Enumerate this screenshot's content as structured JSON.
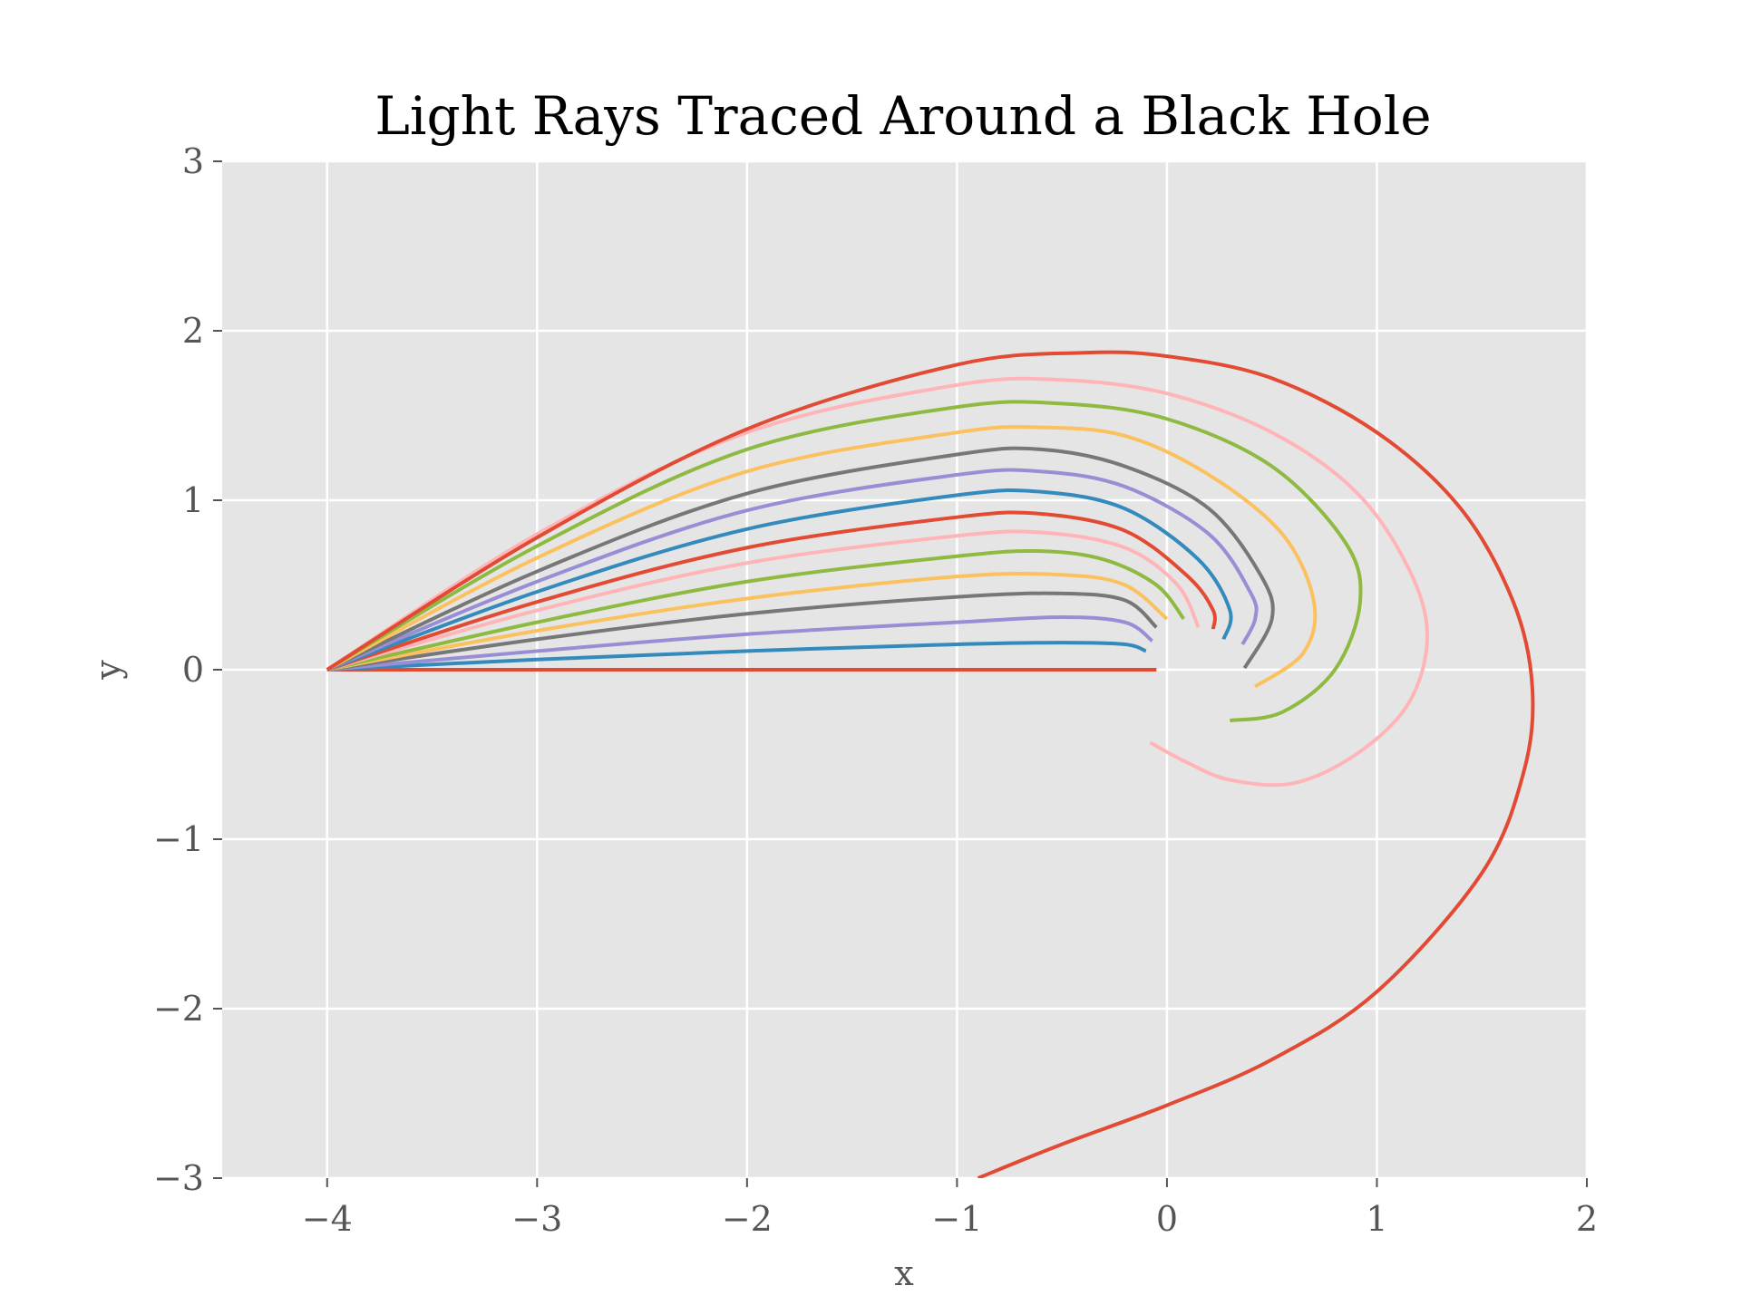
{
  "chart_data": {
    "type": "line",
    "title": "Light Rays Traced Around a Black Hole",
    "xlabel": "x",
    "ylabel": "y",
    "xlim": [
      -4.5,
      2
    ],
    "ylim": [
      -3,
      3
    ],
    "xticks": [
      -4,
      -3,
      -2,
      -1,
      0,
      1,
      2
    ],
    "yticks": [
      -3,
      -2,
      -1,
      0,
      1,
      2,
      3
    ],
    "xtick_labels": [
      "−4",
      "−3",
      "−2",
      "−1",
      "0",
      "1",
      "2"
    ],
    "ytick_labels": [
      "−3",
      "−2",
      "−1",
      "0",
      "1",
      "2",
      "3"
    ],
    "grid": true,
    "legend": "none",
    "background": "#e5e5e5",
    "series": [
      {
        "color": "#e24a33",
        "x": [
          -4,
          -3,
          -2,
          -1,
          -0.5,
          -0.05
        ],
        "y": [
          0,
          0,
          0,
          0,
          0,
          0
        ]
      },
      {
        "color": "#348abd",
        "x": [
          -4,
          -3,
          -2,
          -1,
          -0.5,
          -0.2,
          -0.1
        ],
        "y": [
          0,
          0.06,
          0.11,
          0.15,
          0.16,
          0.15,
          0.11
        ]
      },
      {
        "color": "#988ed5",
        "x": [
          -4,
          -3,
          -2,
          -1,
          -0.5,
          -0.2,
          -0.07
        ],
        "y": [
          0,
          0.11,
          0.21,
          0.28,
          0.31,
          0.28,
          0.17
        ]
      },
      {
        "color": "#777777",
        "x": [
          -4,
          -3,
          -2,
          -1,
          -0.5,
          -0.2,
          -0.05
        ],
        "y": [
          0,
          0.18,
          0.33,
          0.43,
          0.45,
          0.41,
          0.25
        ]
      },
      {
        "color": "#fbc15e",
        "x": [
          -4,
          -3,
          -2,
          -1,
          -0.5,
          -0.2,
          0.0
        ],
        "y": [
          0,
          0.23,
          0.42,
          0.55,
          0.56,
          0.5,
          0.3
        ]
      },
      {
        "color": "#8eba42",
        "x": [
          -4,
          -3,
          -2,
          -1,
          -0.6,
          -0.3,
          -0.05,
          0.08
        ],
        "y": [
          0,
          0.28,
          0.52,
          0.67,
          0.7,
          0.65,
          0.5,
          0.3
        ]
      },
      {
        "color": "#ffb5b8",
        "x": [
          -4,
          -3,
          -2,
          -1,
          -0.6,
          -0.2,
          0.05,
          0.15
        ],
        "y": [
          0,
          0.35,
          0.63,
          0.79,
          0.81,
          0.72,
          0.5,
          0.25
        ]
      },
      {
        "color": "#e24a33",
        "x": [
          -4,
          -3,
          -2,
          -1,
          -0.6,
          -0.2,
          0.1,
          0.22,
          0.22
        ],
        "y": [
          0,
          0.4,
          0.72,
          0.9,
          0.92,
          0.82,
          0.55,
          0.35,
          0.24
        ]
      },
      {
        "color": "#348abd",
        "x": [
          -4,
          -3,
          -2,
          -1,
          -0.6,
          -0.2,
          0.15,
          0.3,
          0.27
        ],
        "y": [
          0,
          0.46,
          0.83,
          1.03,
          1.05,
          0.95,
          0.65,
          0.35,
          0.18
        ]
      },
      {
        "color": "#988ed5",
        "x": [
          -4,
          -3,
          -2,
          -1,
          -0.6,
          -0.2,
          0.2,
          0.4,
          0.42,
          0.36
        ],
        "y": [
          0,
          0.52,
          0.94,
          1.15,
          1.17,
          1.08,
          0.8,
          0.45,
          0.3,
          0.15
        ]
      },
      {
        "color": "#777777",
        "x": [
          -4,
          -3,
          -2,
          -1,
          -0.6,
          -0.2,
          0.2,
          0.45,
          0.5,
          0.37
        ],
        "y": [
          0,
          0.58,
          1.04,
          1.27,
          1.3,
          1.2,
          0.95,
          0.55,
          0.3,
          0.01
        ]
      },
      {
        "color": "#fbc15e",
        "x": [
          -4,
          -3,
          -2,
          -1,
          -0.6,
          -0.2,
          0.2,
          0.55,
          0.7,
          0.65,
          0.42
        ],
        "y": [
          0,
          0.66,
          1.17,
          1.4,
          1.43,
          1.38,
          1.15,
          0.8,
          0.4,
          0.1,
          -0.1
        ]
      },
      {
        "color": "#8eba42",
        "x": [
          -4,
          -3,
          -2,
          -1,
          -0.5,
          0.0,
          0.5,
          0.85,
          0.92,
          0.8,
          0.55,
          0.3
        ],
        "y": [
          0,
          0.73,
          1.3,
          1.55,
          1.57,
          1.48,
          1.2,
          0.75,
          0.4,
          0.0,
          -0.25,
          -0.3
        ]
      },
      {
        "color": "#ffb5b8",
        "x": [
          -4,
          -3,
          -2,
          -1,
          -0.5,
          0.0,
          0.5,
          0.9,
          1.15,
          1.24,
          1.15,
          0.9,
          0.6,
          0.3,
          0.1,
          -0.08
        ],
        "y": [
          0,
          0.8,
          1.4,
          1.68,
          1.71,
          1.63,
          1.4,
          1.05,
          0.6,
          0.2,
          -0.2,
          -0.5,
          -0.67,
          -0.65,
          -0.55,
          -0.43
        ]
      },
      {
        "color": "#e24a33",
        "x": [
          -4,
          -3,
          -2,
          -1,
          -0.4,
          0.0,
          0.5,
          1.0,
          1.4,
          1.65,
          1.74,
          1.7,
          1.5,
          1.0,
          0.5,
          0.0,
          -0.5,
          -0.9
        ],
        "y": [
          0,
          0.78,
          1.42,
          1.8,
          1.87,
          1.85,
          1.72,
          1.4,
          0.95,
          0.4,
          -0.1,
          -0.6,
          -1.2,
          -1.9,
          -2.3,
          -2.57,
          -2.8,
          -3.0
        ]
      }
    ]
  }
}
